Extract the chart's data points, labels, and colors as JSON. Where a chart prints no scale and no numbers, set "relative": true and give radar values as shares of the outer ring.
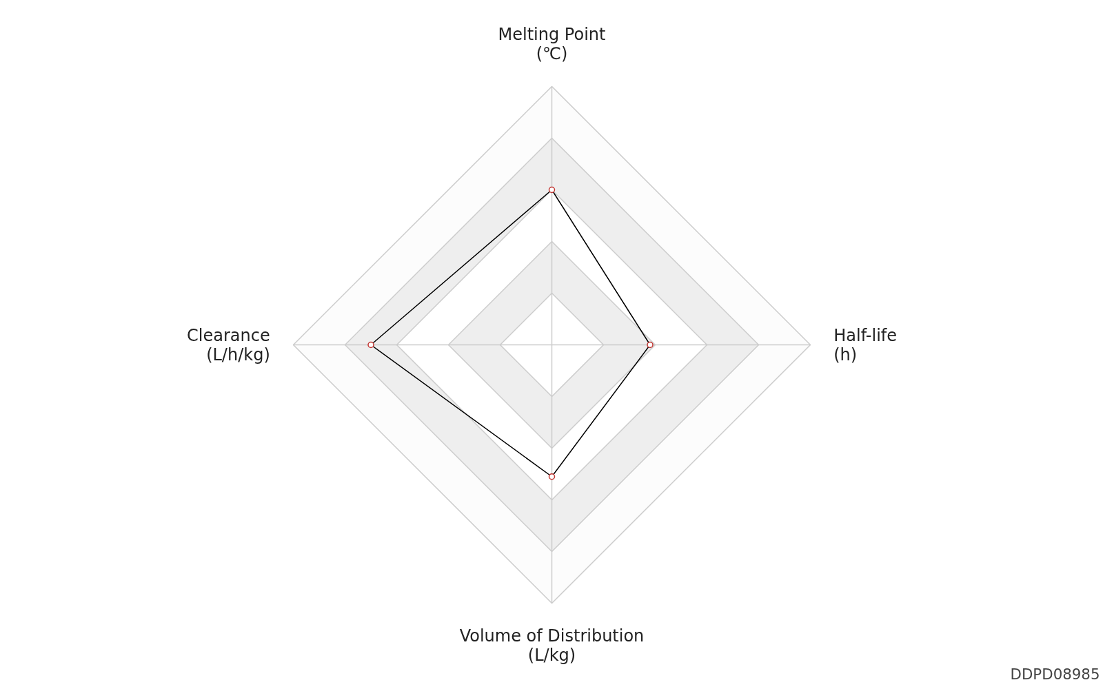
{
  "chart_data": {
    "type": "radar",
    "relative": true,
    "categories": [
      "Melting Point\n(℃)",
      "Half-life\n(h)",
      "Volume of Distribution\n(L/kg)",
      "Clearance\n(L/h/kg)"
    ],
    "series": [
      {
        "color": "#000000",
        "colors": [
          "#c23531",
          "#c23531",
          "#c23531",
          "#c23531"
        ],
        "values": [
          0.6,
          0.38,
          0.51,
          0.7
        ]
      }
    ],
    "marker": "circle",
    "annotations": [
      "DDPD08985"
    ]
  }
}
